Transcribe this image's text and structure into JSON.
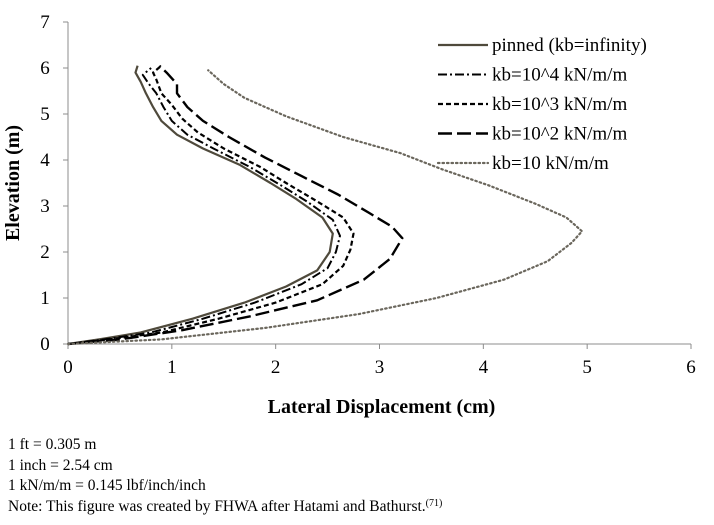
{
  "chart_data": {
    "type": "line",
    "xlabel": "Lateral Displacement (cm)",
    "ylabel": "Elevation (m)",
    "xlim": [
      0,
      6
    ],
    "ylim": [
      0,
      7
    ],
    "xticks": [
      "0",
      "1",
      "2",
      "3",
      "4",
      "5",
      "6"
    ],
    "yticks": [
      "0",
      "1",
      "2",
      "3",
      "4",
      "5",
      "6",
      "7"
    ],
    "grid": false,
    "legend_position": "top-right",
    "series": [
      {
        "name": "pinned (kb=infinity)",
        "style": "solid",
        "color": "#4f4a3c",
        "points": [
          [
            0,
            0
          ],
          [
            0.3,
            0.1
          ],
          [
            0.7,
            0.25
          ],
          [
            1.2,
            0.55
          ],
          [
            1.7,
            0.9
          ],
          [
            2.1,
            1.25
          ],
          [
            2.4,
            1.6
          ],
          [
            2.52,
            2.0
          ],
          [
            2.55,
            2.4
          ],
          [
            2.45,
            2.75
          ],
          [
            2.2,
            3.15
          ],
          [
            1.95,
            3.5
          ],
          [
            1.65,
            3.9
          ],
          [
            1.3,
            4.25
          ],
          [
            1.05,
            4.55
          ],
          [
            0.9,
            4.85
          ],
          [
            0.82,
            5.15
          ],
          [
            0.75,
            5.45
          ],
          [
            0.7,
            5.7
          ],
          [
            0.65,
            5.9
          ],
          [
            0.67,
            6.05
          ]
        ]
      },
      {
        "name": "kb=10^4 kN/m/m",
        "style": "dashdot",
        "color": "#000000",
        "points": [
          [
            0,
            0
          ],
          [
            0.35,
            0.1
          ],
          [
            0.8,
            0.25
          ],
          [
            1.3,
            0.55
          ],
          [
            1.8,
            0.9
          ],
          [
            2.25,
            1.3
          ],
          [
            2.5,
            1.65
          ],
          [
            2.58,
            2.0
          ],
          [
            2.62,
            2.35
          ],
          [
            2.55,
            2.7
          ],
          [
            2.3,
            3.1
          ],
          [
            2.05,
            3.45
          ],
          [
            1.75,
            3.85
          ],
          [
            1.4,
            4.25
          ],
          [
            1.15,
            4.55
          ],
          [
            1.0,
            4.85
          ],
          [
            0.92,
            5.15
          ],
          [
            0.85,
            5.45
          ],
          [
            0.78,
            5.65
          ],
          [
            0.72,
            5.85
          ],
          [
            0.8,
            6.0
          ]
        ]
      },
      {
        "name": "kb=10^3 kN/m/m",
        "style": "dash",
        "color": "#000000",
        "points": [
          [
            0,
            0
          ],
          [
            0.4,
            0.1
          ],
          [
            0.9,
            0.25
          ],
          [
            1.45,
            0.55
          ],
          [
            2.0,
            0.9
          ],
          [
            2.45,
            1.3
          ],
          [
            2.65,
            1.7
          ],
          [
            2.72,
            2.05
          ],
          [
            2.75,
            2.4
          ],
          [
            2.65,
            2.75
          ],
          [
            2.4,
            3.1
          ],
          [
            2.1,
            3.5
          ],
          [
            1.85,
            3.85
          ],
          [
            1.5,
            4.25
          ],
          [
            1.25,
            4.6
          ],
          [
            1.1,
            4.9
          ],
          [
            1.0,
            5.2
          ],
          [
            0.9,
            5.45
          ],
          [
            0.85,
            5.75
          ],
          [
            0.82,
            5.9
          ],
          [
            0.9,
            6.05
          ]
        ]
      },
      {
        "name": "kb=10^2 kN/m/m",
        "style": "longdash",
        "color": "#000000",
        "points": [
          [
            0,
            0
          ],
          [
            0.5,
            0.1
          ],
          [
            1.1,
            0.3
          ],
          [
            1.75,
            0.6
          ],
          [
            2.4,
            0.95
          ],
          [
            2.85,
            1.4
          ],
          [
            3.1,
            1.85
          ],
          [
            3.22,
            2.3
          ],
          [
            3.12,
            2.55
          ],
          [
            2.9,
            2.85
          ],
          [
            2.6,
            3.25
          ],
          [
            2.25,
            3.65
          ],
          [
            1.9,
            4.05
          ],
          [
            1.55,
            4.5
          ],
          [
            1.3,
            4.85
          ],
          [
            1.15,
            5.15
          ],
          [
            1.05,
            5.45
          ],
          [
            1.05,
            5.65
          ],
          [
            0.95,
            5.9
          ],
          [
            0.88,
            6.05
          ]
        ]
      },
      {
        "name": "kb=10 kN/m/m",
        "style": "dotted",
        "color": "#6b675d",
        "points": [
          [
            0,
            0
          ],
          [
            0.9,
            0.1
          ],
          [
            1.9,
            0.35
          ],
          [
            2.8,
            0.65
          ],
          [
            3.55,
            1.0
          ],
          [
            4.2,
            1.4
          ],
          [
            4.62,
            1.8
          ],
          [
            4.85,
            2.2
          ],
          [
            4.95,
            2.45
          ],
          [
            4.8,
            2.75
          ],
          [
            4.5,
            3.05
          ],
          [
            4.05,
            3.45
          ],
          [
            3.6,
            3.8
          ],
          [
            3.2,
            4.15
          ],
          [
            2.65,
            4.5
          ],
          [
            2.1,
            4.95
          ],
          [
            1.7,
            5.35
          ],
          [
            1.5,
            5.65
          ],
          [
            1.35,
            5.95
          ]
        ]
      }
    ]
  },
  "notes": {
    "line1": "1 ft = 0.305 m",
    "line2": "1 inch = 2.54 cm",
    "line3": "1 kN/m/m = 0.145 lbf/inch/inch",
    "line4": "Note: This figure was created by FHWA after Hatami and Bathurst.",
    "line4_sup": "(71)"
  }
}
